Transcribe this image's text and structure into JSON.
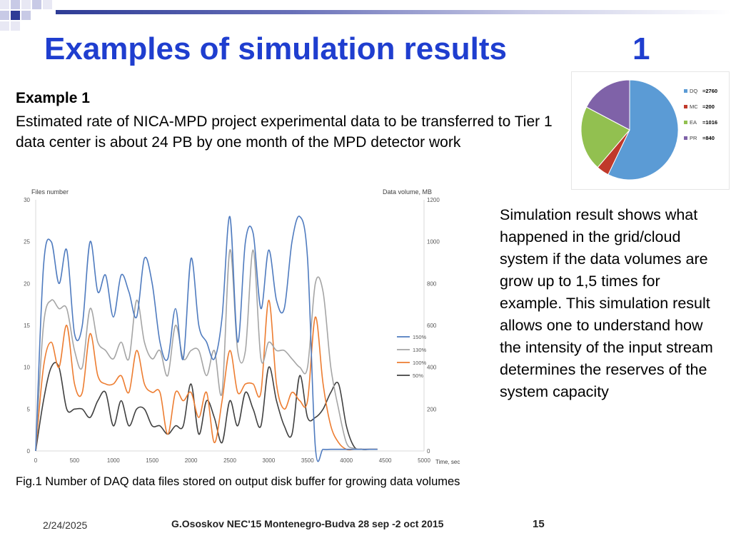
{
  "slide": {
    "title": "Examples of simulation results",
    "title_number": "1",
    "example_heading": "Example 1",
    "example_text": "Estimated rate of NICA-MPD project experimental data to be transferred to Tier 1 data center is about 24 PB  by one month of the MPD detector work",
    "side_text": "Simulation result shows what happened in the grid/cloud system if the data volumes are grow up to 1,5 times for example. This simulation result allows one to understand how the intensity of the input stream determines the reserves of the system capacity",
    "caption": "Fig.1 Number of DAQ data files stored on output disk buffer for growing data volumes",
    "date": "2/24/2025",
    "footer": "G.Ososkov NEC'15 Montenegro-Budva 28 sep -2 oct 2015",
    "page_number": "15",
    "colors": {
      "title": "#1f3ecf",
      "bar": "#2e3c96"
    }
  },
  "chart_data": [
    {
      "type": "line",
      "ylabel": "Files number",
      "y2label": "Data volume, MB",
      "xlabel": "Time, sec",
      "xlim": [
        0,
        5000
      ],
      "ylim": [
        0,
        30
      ],
      "y2lim": [
        0,
        1200
      ],
      "xticks": [
        0,
        500,
        1000,
        1500,
        2000,
        2500,
        3000,
        3500,
        4000,
        4500,
        5000
      ],
      "yticks": [
        0,
        5,
        10,
        15,
        20,
        25,
        30
      ],
      "y2ticks": [
        0,
        200,
        400,
        600,
        800,
        1000,
        1200
      ],
      "legend_position": "right",
      "grid": false,
      "series": [
        {
          "name": "150%",
          "color": "#4f7bbf",
          "x": [
            0,
            100,
            200,
            300,
            400,
            500,
            600,
            700,
            800,
            900,
            1000,
            1100,
            1200,
            1300,
            1400,
            1500,
            1600,
            1700,
            1800,
            1900,
            2000,
            2100,
            2200,
            2300,
            2400,
            2500,
            2600,
            2700,
            2800,
            2900,
            3000,
            3100,
            3200,
            3300,
            3400,
            3500,
            3600,
            3700,
            3800,
            3900,
            4000,
            4100,
            4200,
            4300,
            4400
          ],
          "y": [
            0,
            22,
            25,
            20,
            24,
            14,
            15,
            25,
            19,
            21,
            16,
            21,
            19,
            16,
            23,
            20,
            13,
            11,
            17,
            11,
            23,
            15,
            13,
            11,
            16,
            28,
            13,
            25,
            26,
            17,
            24,
            18,
            17,
            25,
            28,
            23,
            0.5,
            0.2,
            0.2,
            0.2,
            0.2,
            0.2,
            0.2,
            0.2,
            0.2
          ]
        },
        {
          "name": "130%",
          "color": "#a5a5a5",
          "x": [
            0,
            100,
            200,
            300,
            400,
            500,
            600,
            700,
            800,
            900,
            1000,
            1100,
            1200,
            1300,
            1400,
            1500,
            1600,
            1700,
            1800,
            1900,
            2000,
            2100,
            2200,
            2300,
            2400,
            2500,
            2600,
            2700,
            2800,
            2900,
            3000,
            3100,
            3200,
            3300,
            3400,
            3500,
            3600,
            3700,
            3800,
            3900,
            4000,
            4100,
            4200,
            4300,
            4400
          ],
          "y": [
            0,
            15,
            18,
            17,
            17,
            12,
            10,
            17,
            13,
            12,
            11,
            13,
            11,
            18,
            13,
            11,
            12,
            9,
            15,
            11,
            12,
            12,
            9,
            12,
            7,
            24,
            12,
            12,
            24,
            11,
            13,
            12,
            12,
            11,
            10,
            10,
            20,
            19,
            10,
            5,
            1,
            0.3,
            0.2,
            0.2,
            0.2
          ]
        },
        {
          "name": "100%",
          "color": "#ed7d31",
          "x": [
            0,
            100,
            200,
            300,
            400,
            500,
            600,
            700,
            800,
            900,
            1000,
            1100,
            1200,
            1300,
            1400,
            1500,
            1600,
            1700,
            1800,
            1900,
            2000,
            2100,
            2200,
            2300,
            2400,
            2500,
            2600,
            2700,
            2800,
            2900,
            3000,
            3100,
            3200,
            3300,
            3400,
            3500,
            3600,
            3700,
            3800,
            3900,
            4000,
            4100,
            4200,
            4300,
            4400
          ],
          "y": [
            0,
            10,
            13,
            10,
            15,
            8,
            7,
            14,
            9,
            8,
            8,
            9,
            7,
            12,
            8,
            7,
            7,
            2,
            7,
            6,
            7,
            4,
            7,
            1,
            6,
            12,
            7,
            8,
            8,
            7,
            18,
            8,
            5,
            7,
            6,
            6,
            16,
            8,
            3,
            1,
            0.2,
            0.2,
            0.2,
            0.2,
            0.2
          ]
        },
        {
          "name": "50%",
          "color": "#404040",
          "x": [
            0,
            100,
            200,
            300,
            400,
            500,
            600,
            700,
            800,
            900,
            1000,
            1100,
            1200,
            1300,
            1400,
            1500,
            1600,
            1700,
            1800,
            1900,
            2000,
            2100,
            2200,
            2300,
            2400,
            2500,
            2600,
            2700,
            2800,
            2900,
            3000,
            3100,
            3200,
            3300,
            3400,
            3500,
            3600,
            3700,
            3800,
            3900,
            4000,
            4100,
            4200,
            4300,
            4400
          ],
          "y": [
            0,
            6,
            10,
            10,
            5,
            5,
            5,
            4,
            6,
            7,
            3,
            6,
            3,
            5,
            5,
            3,
            3,
            2,
            3,
            3,
            8,
            2,
            6,
            4,
            1,
            6,
            3,
            7,
            5,
            3,
            10,
            6,
            3,
            2,
            9,
            4,
            4,
            5,
            7,
            8,
            3,
            0.5,
            0.2,
            0.2,
            0.2
          ]
        }
      ]
    },
    {
      "type": "pie",
      "categories": [
        "DQ",
        "MC",
        "EA",
        "PR"
      ],
      "value_labels": [
        "=2760",
        "=200",
        "=1016",
        "=840"
      ],
      "values": [
        2760,
        200,
        1016,
        840
      ],
      "colors": [
        "#5b9bd5",
        "#c0392b",
        "#92c050",
        "#7f62a8"
      ],
      "legend_position": "right"
    }
  ]
}
